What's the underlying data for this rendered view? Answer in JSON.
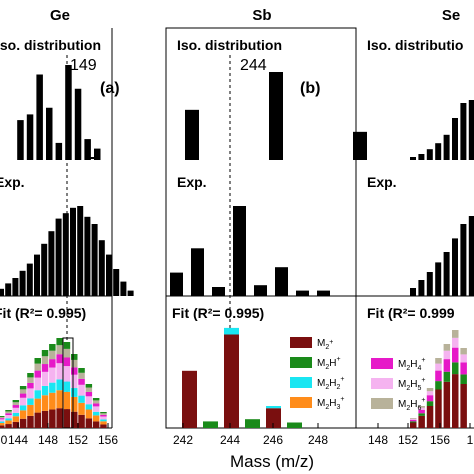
{
  "figure": {
    "xlabel": "Mass (m/z)",
    "colors": {
      "M2": "#7a0f0f",
      "M2H": "#1a8a1a",
      "M2H2": "#19e6f2",
      "M2H3": "#ff8c1a",
      "M2H4": "#e619c8",
      "M2H5": "#f5b3f0",
      "M2H6": "#b8b29a",
      "black": "#000000"
    }
  },
  "panels": [
    {
      "element": "Ge",
      "letter": "(a)",
      "iso_title": "Iso. distribution",
      "iso_value": "149",
      "exp_title": "Exp.",
      "fit_title": "Fit (R²= 0.995)",
      "x_ticks": [
        "144",
        "148",
        "152",
        "156"
      ],
      "x_tick_partial": "0"
    },
    {
      "element": "Sb",
      "letter": "(b)",
      "iso_title": "Iso. distribution",
      "iso_value": "244",
      "exp_title": "Exp.",
      "fit_title": "Fit (R²= 0.995)",
      "x_ticks": [
        "242",
        "244",
        "246",
        "248"
      ]
    },
    {
      "element": "Se",
      "iso_title": "Iso. distributio",
      "exp_title": "Exp.",
      "fit_title": "Fit (R²= 0.999",
      "x_ticks": [
        "148",
        "152",
        "156",
        "1"
      ]
    }
  ],
  "legend_b": [
    {
      "main": "M",
      "sub": "2",
      "h": "",
      "sup": "+",
      "color_key": "M2"
    },
    {
      "main": "M",
      "sub": "2",
      "h": "H",
      "sup": "+",
      "color_key": "M2H"
    },
    {
      "main": "M",
      "sub": "2",
      "h": "H",
      "hsub": "2",
      "sup": "+",
      "color_key": "M2H2"
    },
    {
      "main": "M",
      "sub": "2",
      "h": "H",
      "hsub": "3",
      "sup": "+",
      "color_key": "M2H3"
    }
  ],
  "legend_c": [
    {
      "main": "M",
      "sub": "2",
      "h": "H",
      "hsub": "4",
      "sup": "+",
      "color_key": "M2H4"
    },
    {
      "main": "M",
      "sub": "2",
      "h": "H",
      "hsub": "5",
      "sup": "+",
      "color_key": "M2H5"
    },
    {
      "main": "M",
      "sub": "2",
      "h": "H",
      "hsub": "6",
      "sup": "+",
      "color_key": "M2H6"
    }
  ],
  "chart_data": [
    {
      "type": "bar",
      "panel": "Ge iso",
      "x": [
        138,
        139,
        140,
        141,
        142,
        143,
        144,
        145,
        146,
        147,
        148,
        149,
        150,
        151,
        152,
        153,
        154,
        155,
        156,
        157
      ],
      "values": [
        0,
        0,
        0.42,
        0.48,
        0.9,
        0.55,
        0.18,
        1.0,
        0.75,
        0.22,
        0.12,
        0.0,
        0.0,
        0.0,
        0.0,
        0.0,
        0.0,
        0.0,
        0.0,
        0.0
      ],
      "ylim": [
        0,
        1
      ]
    },
    {
      "type": "bar",
      "panel": "Ge exp",
      "x": [
        138,
        139,
        140,
        141,
        142,
        143,
        144,
        145,
        146,
        147,
        148,
        149,
        150,
        151,
        152,
        153,
        154,
        155,
        156
      ],
      "values": [
        0.08,
        0.14,
        0.2,
        0.28,
        0.36,
        0.46,
        0.58,
        0.72,
        0.86,
        0.92,
        0.98,
        1.0,
        0.88,
        0.8,
        0.62,
        0.46,
        0.3,
        0.16,
        0.06
      ],
      "ylim": [
        0,
        1
      ]
    },
    {
      "type": "bar",
      "panel": "Sb iso",
      "categories": [
        "242",
        "244",
        "246"
      ],
      "x": [
        242,
        244,
        246
      ],
      "values": [
        0.57,
        1.0,
        0.32
      ],
      "ylim": [
        0,
        1
      ]
    },
    {
      "type": "bar",
      "panel": "Sb exp",
      "x": [
        241,
        242,
        243,
        244,
        245,
        246,
        247,
        248
      ],
      "values": [
        0.26,
        0.53,
        0.1,
        1.0,
        0.12,
        0.32,
        0.06,
        0.06
      ],
      "ylim": [
        0,
        1
      ]
    },
    {
      "type": "bar",
      "panel": "Sb fit",
      "x": [
        242,
        243,
        244,
        245,
        246,
        247,
        248
      ],
      "series": [
        {
          "name": "M2+",
          "values": [
            0.52,
            0.0,
            0.85,
            0.0,
            0.18,
            0.0,
            0.0
          ]
        },
        {
          "name": "M2H+",
          "values": [
            0.0,
            0.06,
            0.0,
            0.08,
            0.0,
            0.05,
            0.0
          ]
        },
        {
          "name": "M2H2+",
          "values": [
            0.0,
            0.0,
            0.06,
            0.0,
            0.02,
            0.0,
            0.0
          ]
        },
        {
          "name": "M2H3+",
          "values": [
            0.0,
            0.0,
            0.0,
            0.0,
            0.0,
            0.0,
            0.0
          ]
        }
      ],
      "ylim": [
        0,
        1
      ]
    },
    {
      "type": "bar",
      "panel": "Se iso",
      "x": [
        150,
        151,
        152,
        153,
        154,
        155,
        156,
        157
      ],
      "values": [
        0.05,
        0.1,
        0.18,
        0.28,
        0.42,
        0.7,
        0.95,
        1.0
      ],
      "ylim": [
        0,
        1
      ]
    },
    {
      "type": "bar",
      "panel": "Se exp",
      "x": [
        150,
        151,
        152,
        153,
        154,
        155,
        156,
        157
      ],
      "values": [
        0.1,
        0.2,
        0.3,
        0.42,
        0.55,
        0.72,
        0.9,
        1.0
      ],
      "ylim": [
        0,
        1
      ]
    }
  ]
}
